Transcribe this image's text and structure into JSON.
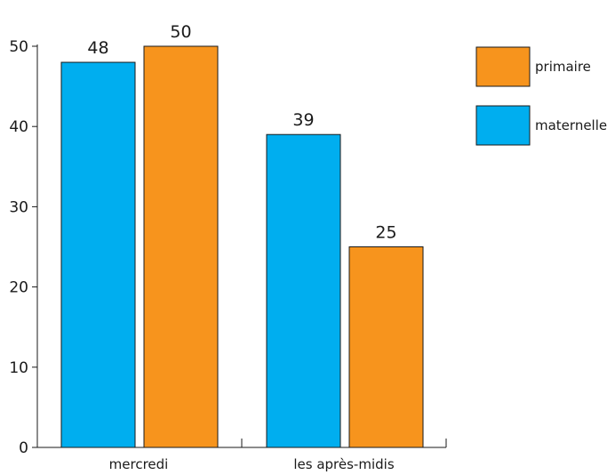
{
  "chart_data": {
    "type": "bar",
    "title": "",
    "xlabel": "",
    "ylabel": "",
    "categories": [
      "mercredi",
      "les après-midis"
    ],
    "series": [
      {
        "name": "maternelle",
        "color": "#00AEEF",
        "values": [
          48,
          39
        ]
      },
      {
        "name": "primaire",
        "color": "#F7941D",
        "values": [
          50,
          25
        ]
      }
    ],
    "ylim": [
      0,
      50
    ],
    "yticks": [
      0,
      10,
      20,
      30,
      40,
      50
    ],
    "grid": false,
    "legend": {
      "placement": "top-right",
      "order": [
        "primaire",
        "maternelle"
      ]
    }
  }
}
